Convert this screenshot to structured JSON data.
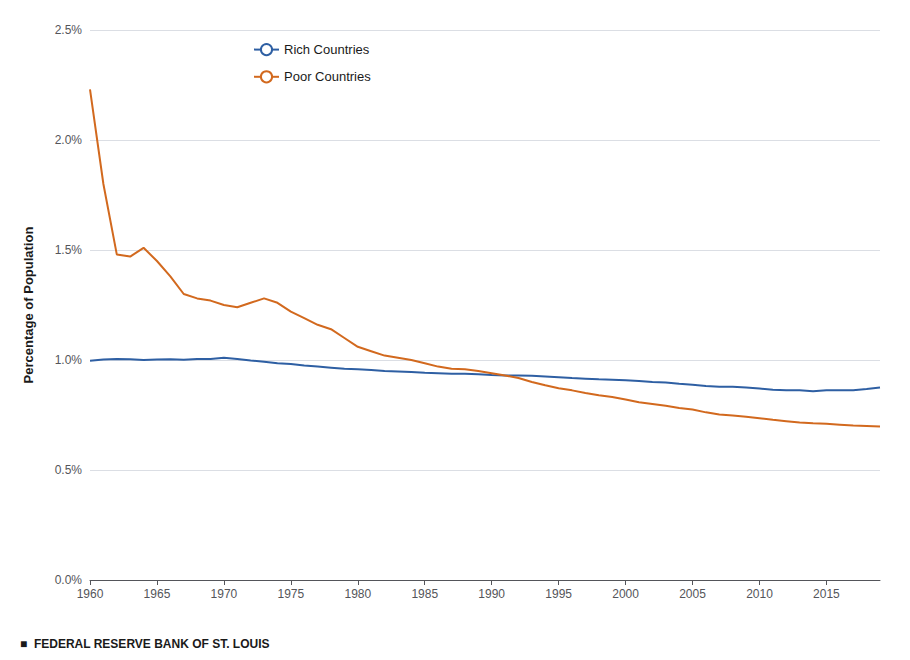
{
  "chart_data": {
    "type": "line",
    "y_label": "Percentage of Population",
    "annotations": [
      "■  FEDERAL RESERVE BANK OF ST. LOUIS"
    ],
    "series": [
      {
        "name": "Rich Countries",
        "color": "#2E5FA3",
        "x": [
          1960,
          1961,
          1962,
          1963,
          1964,
          1965,
          1966,
          1967,
          1968,
          1969,
          1970,
          1971,
          1972,
          1973,
          1974,
          1975,
          1976,
          1977,
          1978,
          1979,
          1980,
          1981,
          1982,
          1983,
          1984,
          1985,
          1986,
          1987,
          1988,
          1989,
          1990,
          1991,
          1992,
          1993,
          1994,
          1995,
          1996,
          1997,
          1998,
          1999,
          2000,
          2001,
          2002,
          2003,
          2004,
          2005,
          2006,
          2007,
          2008,
          2009,
          2010,
          2011,
          2012,
          2013,
          2014,
          2015,
          2016,
          2017,
          2018,
          2019
        ],
        "values": [
          0.00997,
          0.01002,
          0.01005,
          0.01003,
          0.01,
          0.01002,
          0.01003,
          0.01001,
          0.01004,
          0.01005,
          0.0101,
          0.01005,
          0.00998,
          0.00992,
          0.00985,
          0.00982,
          0.00975,
          0.0097,
          0.00965,
          0.0096,
          0.00958,
          0.00955,
          0.0095,
          0.00948,
          0.00945,
          0.00942,
          0.0094,
          0.00938,
          0.00938,
          0.00935,
          0.00932,
          0.0093,
          0.0093,
          0.00928,
          0.00925,
          0.00922,
          0.00918,
          0.00915,
          0.00912,
          0.0091,
          0.00908,
          0.00905,
          0.009,
          0.00898,
          0.00892,
          0.00888,
          0.00882,
          0.00878,
          0.00878,
          0.00875,
          0.0087,
          0.00865,
          0.00862,
          0.00862,
          0.00858,
          0.00862,
          0.00862,
          0.00862,
          0.00868,
          0.00875
        ]
      },
      {
        "name": "Poor Countries",
        "color": "#D2691E",
        "x": [
          1960,
          1961,
          1962,
          1963,
          1964,
          1965,
          1966,
          1967,
          1968,
          1969,
          1970,
          1971,
          1972,
          1973,
          1974,
          1975,
          1976,
          1977,
          1978,
          1979,
          1980,
          1981,
          1982,
          1983,
          1984,
          1985,
          1986,
          1987,
          1988,
          1989,
          1990,
          1991,
          1992,
          1993,
          1994,
          1995,
          1996,
          1997,
          1998,
          1999,
          2000,
          2001,
          2002,
          2003,
          2004,
          2005,
          2006,
          2007,
          2008,
          2009,
          2010,
          2011,
          2012,
          2013,
          2014,
          2015,
          2016,
          2017,
          2018,
          2019
        ],
        "values": [
          0.0223,
          0.018,
          0.0148,
          0.0147,
          0.0151,
          0.0145,
          0.0138,
          0.013,
          0.0128,
          0.0127,
          0.0125,
          0.0124,
          0.0126,
          0.0128,
          0.0126,
          0.0122,
          0.0119,
          0.0116,
          0.0114,
          0.011,
          0.0106,
          0.0104,
          0.0102,
          0.0101,
          0.01,
          0.00985,
          0.0097,
          0.0096,
          0.00958,
          0.0095,
          0.0094,
          0.0093,
          0.00918,
          0.009,
          0.00885,
          0.00872,
          0.00862,
          0.0085,
          0.0084,
          0.00832,
          0.0082,
          0.00808,
          0.008,
          0.00792,
          0.00782,
          0.00775,
          0.00762,
          0.00752,
          0.00748,
          0.00742,
          0.00735,
          0.00728,
          0.00722,
          0.00716,
          0.00712,
          0.0071,
          0.00706,
          0.00702,
          0.007,
          0.00698
        ]
      }
    ],
    "xlim": [
      1960,
      2019
    ],
    "xticks": [
      1960,
      1965,
      1970,
      1975,
      1980,
      1985,
      1990,
      1995,
      2000,
      2005,
      2010,
      2015
    ],
    "ylim": [
      0.0,
      0.025
    ],
    "yticks": [
      {
        "value": 0.0,
        "label": "0.0%"
      },
      {
        "value": 0.005,
        "label": "0.5%"
      },
      {
        "value": 0.01,
        "label": "1.0%"
      },
      {
        "value": 0.015,
        "label": "1.5%"
      },
      {
        "value": 0.02,
        "label": "2.0%"
      },
      {
        "value": 0.025,
        "label": "2.5%"
      }
    ],
    "grid": true,
    "legend": "upper left"
  }
}
